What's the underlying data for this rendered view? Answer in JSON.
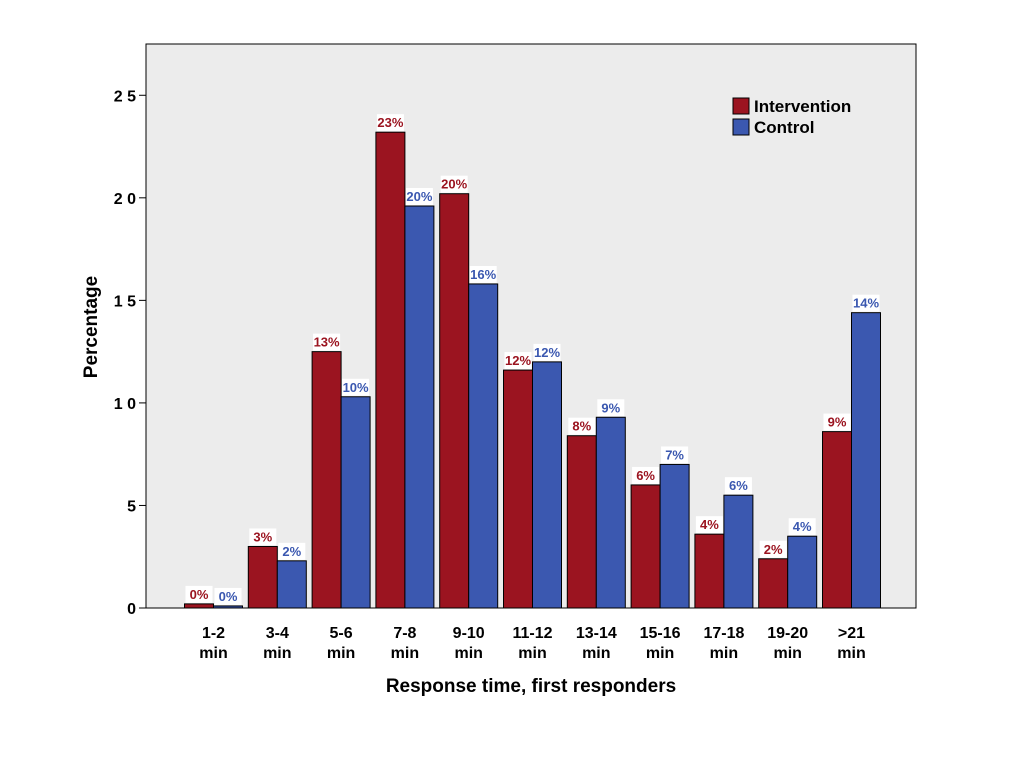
{
  "chart_data": {
    "type": "bar",
    "categories": [
      [
        "1-2",
        "min"
      ],
      [
        "3-4",
        "min"
      ],
      [
        "5-6",
        "min"
      ],
      [
        "7-8",
        "min"
      ],
      [
        "9-10",
        "min"
      ],
      [
        "11-12",
        "min"
      ],
      [
        "13-14",
        "min"
      ],
      [
        "15-16",
        "min"
      ],
      [
        "17-18",
        "min"
      ],
      [
        "19-20",
        "min"
      ],
      [
        ">21",
        "min"
      ]
    ],
    "series": [
      {
        "name": "Intervention",
        "color": "#9b1420",
        "values": [
          0.2,
          3.0,
          12.5,
          23.2,
          20.2,
          11.6,
          8.4,
          6.0,
          3.6,
          2.4,
          8.6
        ],
        "labels": [
          "0%",
          "3%",
          "13%",
          "23%",
          "20%",
          "12%",
          "8%",
          "6%",
          "4%",
          "2%",
          "9%"
        ]
      },
      {
        "name": "Control",
        "color": "#3b58b0",
        "values": [
          0.1,
          2.3,
          10.3,
          19.6,
          15.8,
          12.0,
          9.3,
          7.0,
          5.5,
          3.5,
          14.4
        ],
        "labels": [
          "0%",
          "2%",
          "10%",
          "20%",
          "16%",
          "12%",
          "9%",
          "7%",
          "6%",
          "4%",
          "14%"
        ]
      }
    ],
    "xlabel": "Response time, first responders",
    "ylabel": "Percentage",
    "ylim": [
      0,
      27.5
    ],
    "yticks": [
      0,
      5,
      10,
      15,
      20,
      25
    ],
    "ytick_labels": [
      "0",
      "5",
      "1 0",
      "1 5",
      "2 0",
      "2 5"
    ],
    "plot_background": "#ececec",
    "legend_position": "top-right",
    "grid": false
  }
}
